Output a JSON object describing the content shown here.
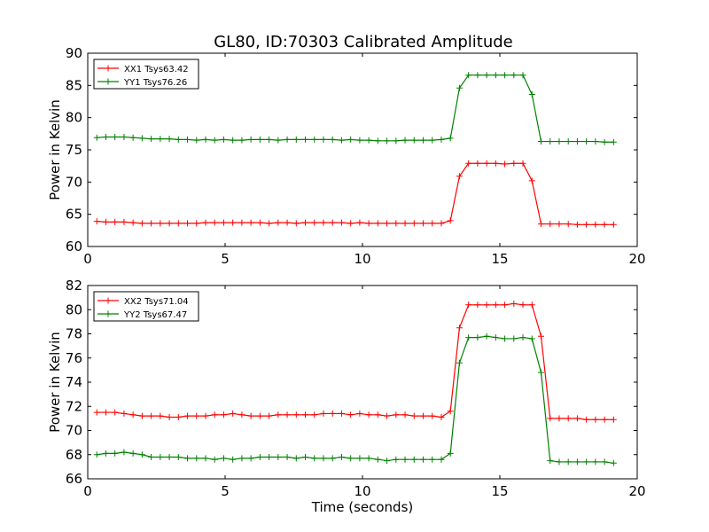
{
  "figure_title": "GL80, ID:70303 Calibrated Amplitude",
  "colors": {
    "red": "#ff0000",
    "green": "#008000"
  },
  "chart_data": [
    {
      "type": "line",
      "xlabel": "",
      "ylabel": "Power in Kelvin",
      "xlim": [
        0,
        20
      ],
      "ylim": [
        60,
        90
      ],
      "xticks": [
        0,
        5,
        10,
        15,
        20
      ],
      "yticks": [
        60,
        65,
        70,
        75,
        80,
        85,
        90
      ],
      "grid": false,
      "legend_position": "top-left",
      "x": [
        0.33,
        0.66,
        0.99,
        1.32,
        1.65,
        1.98,
        2.31,
        2.64,
        2.97,
        3.3,
        3.63,
        3.96,
        4.29,
        4.62,
        4.95,
        5.28,
        5.61,
        5.94,
        6.27,
        6.6,
        6.93,
        7.26,
        7.59,
        7.92,
        8.25,
        8.58,
        8.91,
        9.24,
        9.57,
        9.9,
        10.23,
        10.56,
        10.89,
        11.22,
        11.55,
        11.88,
        12.21,
        12.54,
        12.87,
        13.2,
        13.53,
        13.86,
        14.19,
        14.52,
        14.85,
        15.18,
        15.51,
        15.84,
        16.17,
        16.5,
        16.83,
        17.16,
        17.49,
        17.82,
        18.15,
        18.48,
        18.81,
        19.14
      ],
      "series": [
        {
          "name": "XX1 Tsys63.42",
          "color": "#ff0000",
          "values": [
            63.9,
            63.8,
            63.8,
            63.8,
            63.7,
            63.6,
            63.6,
            63.6,
            63.6,
            63.6,
            63.6,
            63.6,
            63.7,
            63.7,
            63.7,
            63.7,
            63.7,
            63.7,
            63.7,
            63.6,
            63.7,
            63.7,
            63.6,
            63.7,
            63.7,
            63.7,
            63.7,
            63.7,
            63.6,
            63.7,
            63.6,
            63.6,
            63.6,
            63.6,
            63.6,
            63.6,
            63.6,
            63.6,
            63.6,
            64.0,
            70.9,
            72.9,
            72.9,
            72.9,
            72.9,
            72.8,
            72.9,
            72.9,
            70.2,
            63.5,
            63.5,
            63.5,
            63.5,
            63.4,
            63.4,
            63.4,
            63.4,
            63.4
          ]
        },
        {
          "name": "YY1 Tsys76.26",
          "color": "#008000",
          "values": [
            76.9,
            77.0,
            77.0,
            77.0,
            76.9,
            76.8,
            76.7,
            76.7,
            76.7,
            76.6,
            76.6,
            76.5,
            76.6,
            76.5,
            76.6,
            76.5,
            76.5,
            76.6,
            76.6,
            76.6,
            76.5,
            76.6,
            76.6,
            76.6,
            76.6,
            76.6,
            76.6,
            76.5,
            76.6,
            76.5,
            76.5,
            76.4,
            76.4,
            76.4,
            76.5,
            76.5,
            76.5,
            76.5,
            76.6,
            76.8,
            84.6,
            86.6,
            86.6,
            86.6,
            86.6,
            86.6,
            86.6,
            86.6,
            83.6,
            76.3,
            76.3,
            76.3,
            76.3,
            76.3,
            76.3,
            76.3,
            76.2,
            76.2
          ]
        }
      ]
    },
    {
      "type": "line",
      "xlabel": "Time (seconds)",
      "ylabel": "Power in Kelvin",
      "xlim": [
        0,
        20
      ],
      "ylim": [
        66,
        82
      ],
      "xticks": [
        0,
        5,
        10,
        15,
        20
      ],
      "yticks": [
        66,
        68,
        70,
        72,
        74,
        76,
        78,
        80,
        82
      ],
      "grid": false,
      "legend_position": "top-left",
      "x": [
        0.33,
        0.66,
        0.99,
        1.32,
        1.65,
        1.98,
        2.31,
        2.64,
        2.97,
        3.3,
        3.63,
        3.96,
        4.29,
        4.62,
        4.95,
        5.28,
        5.61,
        5.94,
        6.27,
        6.6,
        6.93,
        7.26,
        7.59,
        7.92,
        8.25,
        8.58,
        8.91,
        9.24,
        9.57,
        9.9,
        10.23,
        10.56,
        10.89,
        11.22,
        11.55,
        11.88,
        12.21,
        12.54,
        12.87,
        13.2,
        13.53,
        13.86,
        14.19,
        14.52,
        14.85,
        15.18,
        15.51,
        15.84,
        16.17,
        16.5,
        16.83,
        17.16,
        17.49,
        17.82,
        18.15,
        18.48,
        18.81,
        19.14
      ],
      "series": [
        {
          "name": "XX2 Tsys71.04",
          "color": "#ff0000",
          "values": [
            71.5,
            71.5,
            71.5,
            71.4,
            71.3,
            71.2,
            71.2,
            71.2,
            71.1,
            71.1,
            71.2,
            71.2,
            71.2,
            71.3,
            71.3,
            71.4,
            71.3,
            71.2,
            71.2,
            71.2,
            71.3,
            71.3,
            71.3,
            71.3,
            71.3,
            71.4,
            71.4,
            71.4,
            71.3,
            71.4,
            71.3,
            71.3,
            71.2,
            71.3,
            71.3,
            71.2,
            71.2,
            71.2,
            71.1,
            71.6,
            78.5,
            80.4,
            80.4,
            80.4,
            80.4,
            80.4,
            80.5,
            80.4,
            80.4,
            77.8,
            71.0,
            71.0,
            71.0,
            71.0,
            70.9,
            70.9,
            70.9,
            70.9
          ]
        },
        {
          "name": "YY2 Tsys67.47",
          "color": "#008000",
          "values": [
            68.0,
            68.1,
            68.1,
            68.2,
            68.1,
            68.0,
            67.8,
            67.8,
            67.8,
            67.8,
            67.7,
            67.7,
            67.7,
            67.6,
            67.7,
            67.6,
            67.7,
            67.7,
            67.8,
            67.8,
            67.8,
            67.8,
            67.7,
            67.8,
            67.7,
            67.7,
            67.7,
            67.8,
            67.7,
            67.7,
            67.7,
            67.6,
            67.5,
            67.6,
            67.6,
            67.6,
            67.6,
            67.6,
            67.6,
            68.1,
            75.6,
            77.7,
            77.7,
            77.8,
            77.7,
            77.6,
            77.6,
            77.7,
            77.6,
            74.8,
            67.5,
            67.4,
            67.4,
            67.4,
            67.4,
            67.4,
            67.4,
            67.3
          ]
        }
      ]
    }
  ]
}
